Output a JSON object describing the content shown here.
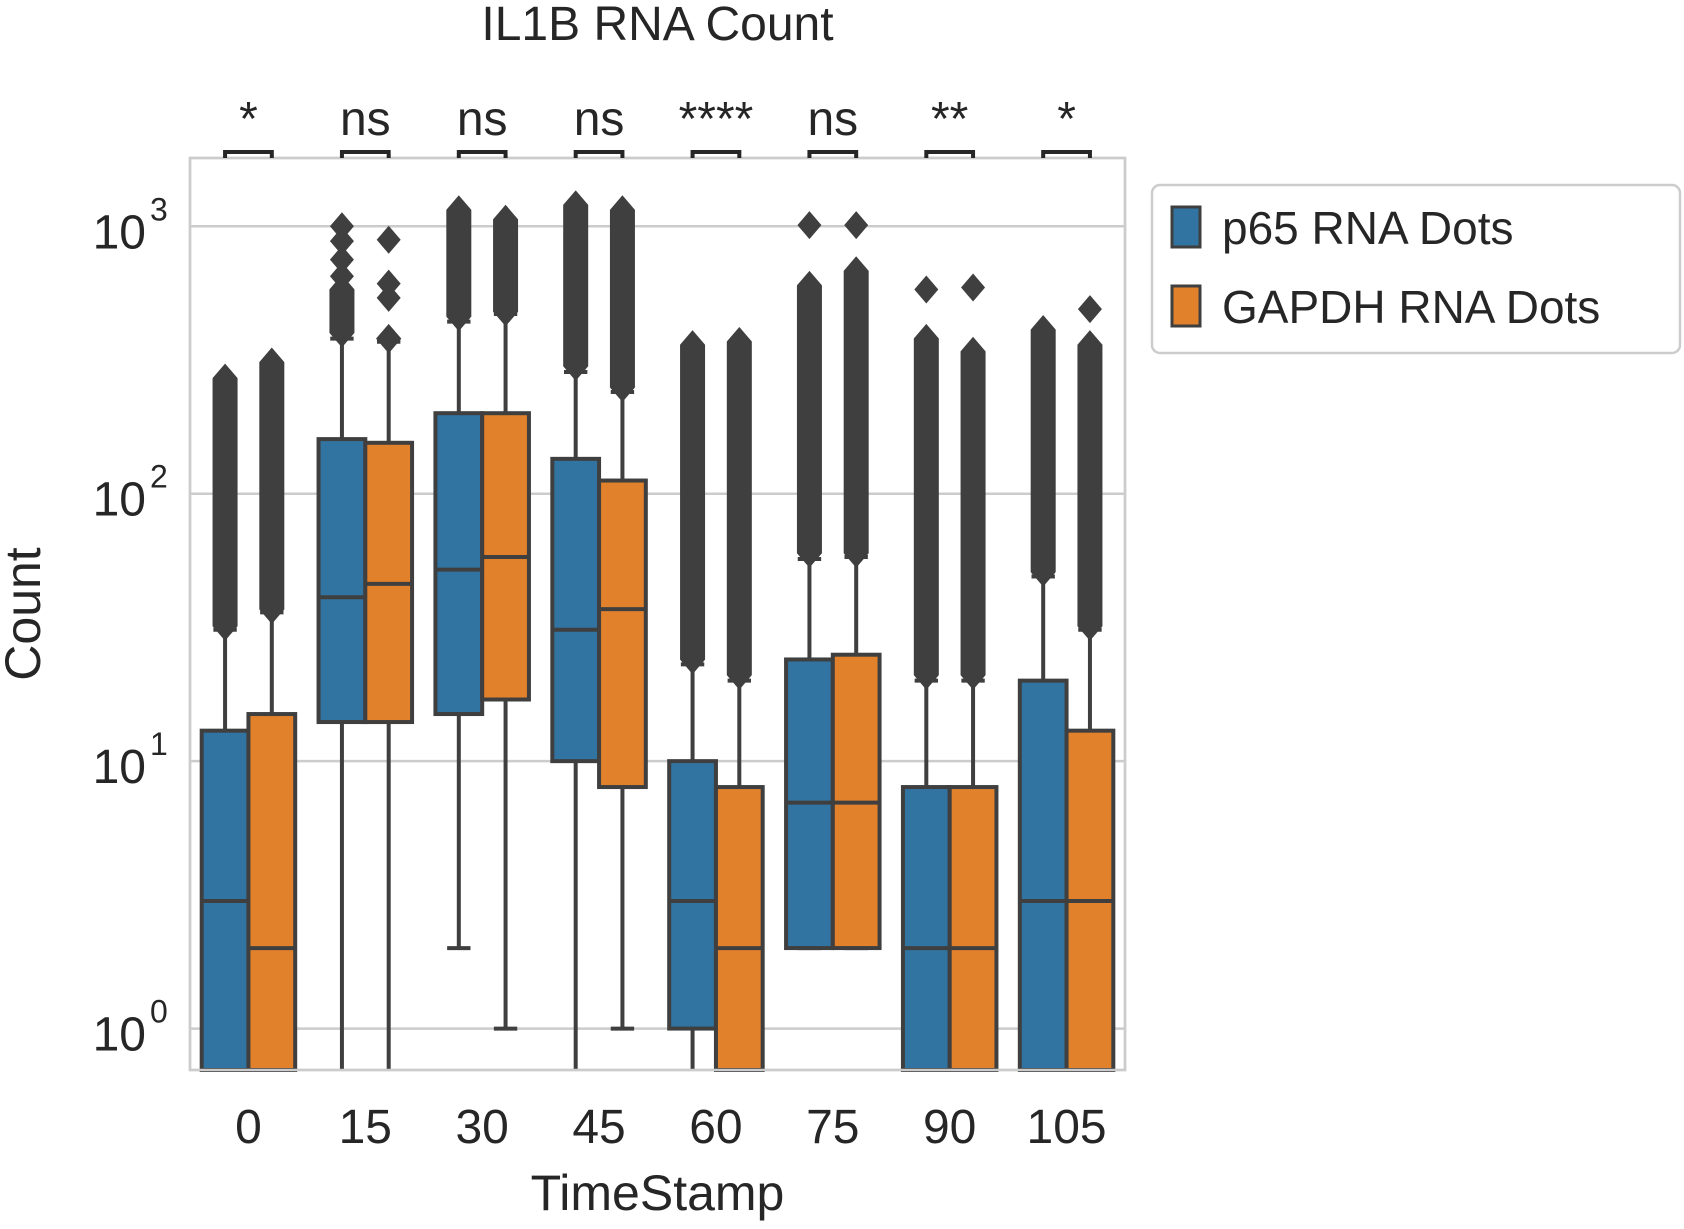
{
  "chart_data": {
    "type": "box",
    "title": "IL1B RNA Count",
    "xlabel": "TimeStamp",
    "ylabel": "Count",
    "yscale": "log",
    "ylim": [
      0.7,
      1800
    ],
    "yticks": [
      {
        "value": 1,
        "base": "10",
        "exp": "0"
      },
      {
        "value": 10,
        "base": "10",
        "exp": "1"
      },
      {
        "value": 100,
        "base": "10",
        "exp": "2"
      },
      {
        "value": 1000,
        "base": "10",
        "exp": "3"
      }
    ],
    "grid": "horizontal",
    "legend_position": "right",
    "categories": [
      "0",
      "15",
      "30",
      "45",
      "60",
      "75",
      "90",
      "105"
    ],
    "significance": [
      "*",
      "ns",
      "ns",
      "ns",
      "****",
      "ns",
      "**",
      "*"
    ],
    "series": [
      {
        "name": "p65 RNA Dots",
        "color": "#3274a1",
        "boxes": [
          {
            "whislo": 0.7,
            "q1": 0.7,
            "med": 3,
            "q3": 13,
            "whishi": 31,
            "outlier_range": [
              32,
              270
            ],
            "outliers": []
          },
          {
            "whislo": 0.7,
            "q1": 14,
            "med": 41,
            "q3": 160,
            "whishi": 380,
            "outlier_range": [
              400,
              580
            ],
            "outliers": [
              650,
              750,
              880,
              1000
            ]
          },
          {
            "whislo": 2,
            "q1": 15,
            "med": 52,
            "q3": 200,
            "whishi": 440,
            "outlier_range": [
              460,
              1150
            ],
            "outliers": []
          },
          {
            "whislo": 0.7,
            "q1": 10,
            "med": 31,
            "q3": 135,
            "whishi": 285,
            "outlier_range": [
              300,
              1200
            ],
            "outliers": []
          },
          {
            "whislo": 0.7,
            "q1": 1,
            "med": 3,
            "q3": 10,
            "whishi": 23,
            "outlier_range": [
              24,
              360
            ],
            "outliers": []
          },
          {
            "whislo": 2,
            "q1": 2,
            "med": 7,
            "q3": 24,
            "whishi": 57,
            "outlier_range": [
              60,
              600
            ],
            "outliers": [
              1010
            ]
          },
          {
            "whislo": 0.7,
            "q1": 0.7,
            "med": 2,
            "q3": 8,
            "whishi": 20,
            "outlier_range": [
              21,
              380
            ],
            "outliers": [
              580
            ]
          },
          {
            "whislo": 0.7,
            "q1": 0.7,
            "med": 3,
            "q3": 20,
            "whishi": 49,
            "outlier_range": [
              51,
              410
            ],
            "outliers": []
          }
        ]
      },
      {
        "name": "GAPDH RNA Dots",
        "color": "#e1812c",
        "boxes": [
          {
            "whislo": 0.7,
            "q1": 0.7,
            "med": 2,
            "q3": 15,
            "whishi": 36,
            "outlier_range": [
              37,
              310
            ],
            "outliers": []
          },
          {
            "whislo": 0.7,
            "q1": 14,
            "med": 46,
            "q3": 155,
            "whishi": 370,
            "outlier_range": [
              380,
              380
            ],
            "outliers": [
              540,
              610,
              890
            ]
          },
          {
            "whislo": 1,
            "q1": 17,
            "med": 58,
            "q3": 200,
            "whishi": 470,
            "outlier_range": [
              480,
              1060
            ],
            "outliers": []
          },
          {
            "whislo": 1,
            "q1": 8,
            "med": 37,
            "q3": 112,
            "whishi": 240,
            "outlier_range": [
              250,
              1150
            ],
            "outliers": []
          },
          {
            "whislo": 0.7,
            "q1": 0.7,
            "med": 2,
            "q3": 8,
            "whishi": 20,
            "outlier_range": [
              21,
              370
            ],
            "outliers": []
          },
          {
            "whislo": 2,
            "q1": 2,
            "med": 7,
            "q3": 25,
            "whishi": 58,
            "outlier_range": [
              60,
              680
            ],
            "outliers": [
              1010
            ]
          },
          {
            "whislo": 0.7,
            "q1": 0.7,
            "med": 2,
            "q3": 8,
            "whishi": 20,
            "outlier_range": [
              21,
              340
            ],
            "outliers": [
              590
            ]
          },
          {
            "whislo": 0.7,
            "q1": 0.7,
            "med": 3,
            "q3": 13,
            "whishi": 31,
            "outlier_range": [
              32,
              360
            ],
            "outliers": [
              490
            ]
          }
        ]
      }
    ]
  }
}
